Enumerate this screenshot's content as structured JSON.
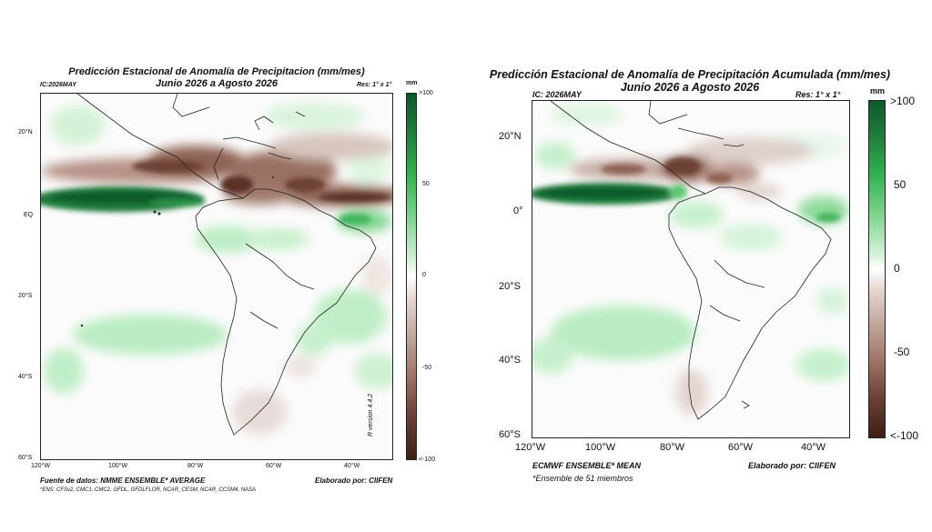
{
  "left_panel": {
    "title_line1": "Predicción Estacional de Anomalía de Precipitacion (mm/mes)",
    "title_line2": "Junio 2026 a Agosto 2026",
    "ic": "IC:2026MAY",
    "res": "Res: 1° x 1°",
    "unit": "mm",
    "lat_ticks": [
      "20°N",
      "EQ",
      "20°S",
      "40°S",
      "60°S"
    ],
    "lon_ticks": [
      "120°W",
      "100°W",
      "80°W",
      "60°W",
      "40°W"
    ],
    "colorbar_ticks": [
      ">100",
      "50",
      "0",
      "-50",
      "<-100"
    ],
    "version": "R version 4.4.2",
    "source": "Fuente de datos: NMME ENSEMBLE* AVERAGE",
    "credit": "Elaborado por: CIIFEN",
    "ens_note": "*ENS: CFSv2, CMC1, CMC2, GFDL, GFDLFLOR, NCAR_CESM, NCAR_CCSM4, NASA"
  },
  "right_panel": {
    "title_line1": "Predicción Estacional de Anomalía de Precipitación Acumulada (mm/mes)",
    "title_line2": "Junio 2026 a Agosto 2026",
    "ic": "IC: 2026MAY",
    "res": "Res: 1° x 1°",
    "unit": "mm",
    "lat_ticks": [
      "20°N",
      "0°",
      "20°S",
      "40°S",
      "60°S"
    ],
    "lon_ticks": [
      "120°W",
      "100°W",
      "80°W",
      "60°W",
      "40°W"
    ],
    "colorbar_ticks": [
      ">100",
      "50",
      "0",
      "-50",
      "<-100"
    ],
    "source": "ECMWF ENSEMBLE* MEAN",
    "credit": "Elaborado por: CIIFEN",
    "ens_note": "*Ensemble de 51 miembros"
  },
  "colors": {
    "wet_dark": "#0b5a2a",
    "wet_mid": "#2fb34f",
    "wet_light": "#bfeec6",
    "neutral": "#ffffff",
    "dry_light": "#e6d7d0",
    "dry_mid": "#a37a6c",
    "dry_dark": "#4a241b"
  }
}
